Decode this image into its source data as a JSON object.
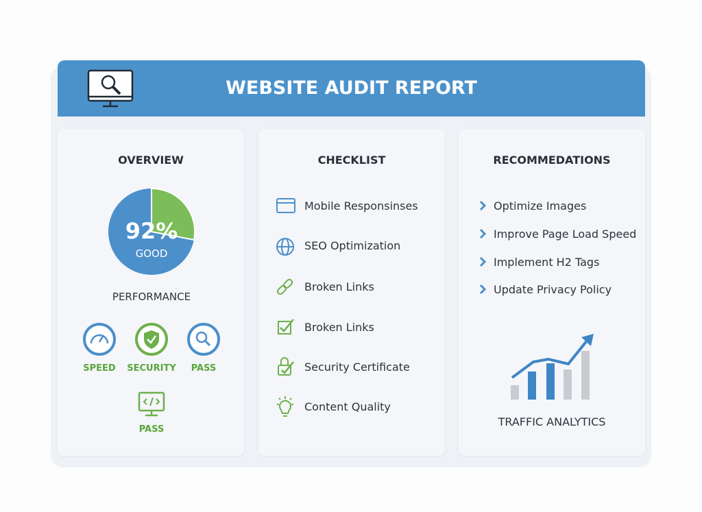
{
  "header": {
    "title": "WEBSITE AUDIT REPORT"
  },
  "overview": {
    "title": "OVERVIEW",
    "score": "92%",
    "rating": "GOOD",
    "caption": "PERFORMANCE",
    "badges": [
      "SPEED",
      "SECURITY",
      "PASS",
      "PASS"
    ]
  },
  "checklist": {
    "title": "CHECKLIST",
    "items": [
      "Mobile Responsinses",
      "SEO Optimization",
      "Broken Links",
      "Broken Links",
      "Security Certificate",
      "Content Quality"
    ]
  },
  "recommendations": {
    "title": "RECOMMEDATIONS",
    "items": [
      "Optimize Images",
      "Improve Page Load Speed",
      "Implement H2 Tags",
      "Update Privacy Policy"
    ],
    "chart_caption": "TRAFFIC ANALYTICS"
  }
}
